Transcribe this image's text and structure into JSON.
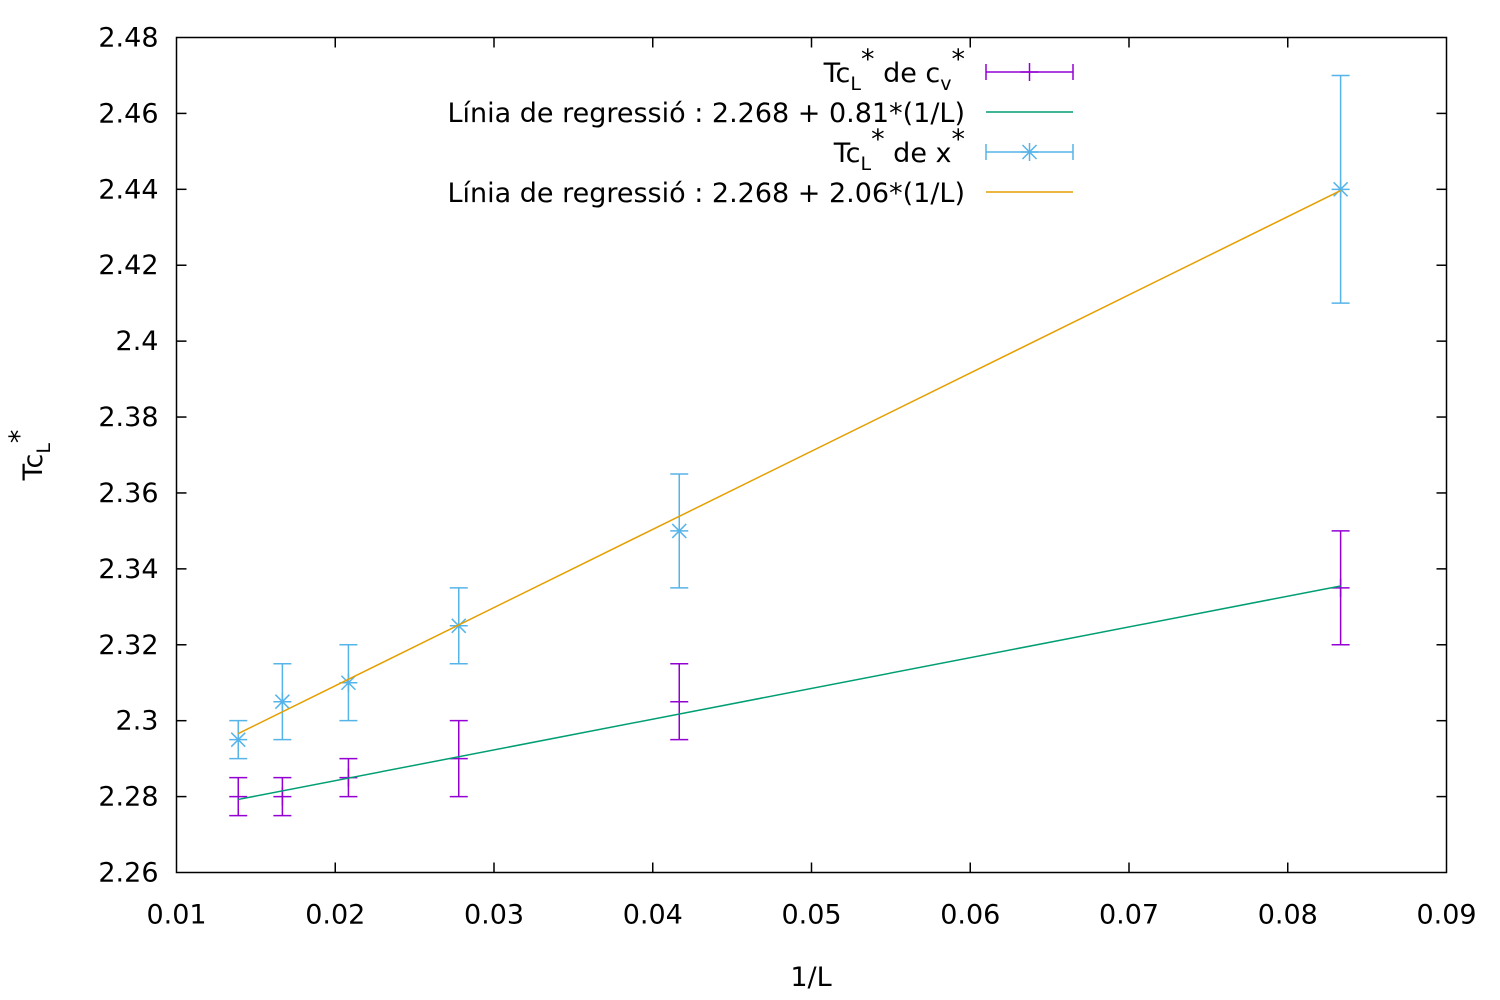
{
  "chart_data": {
    "type": "scatter",
    "title": "",
    "xlabel": "1/L",
    "ylabel": {
      "main": "Tc",
      "sub": "L",
      "sup": "*"
    },
    "xlim": [
      0.01,
      0.09
    ],
    "ylim": [
      2.26,
      2.48
    ],
    "xticks": [
      0.01,
      0.02,
      0.03,
      0.04,
      0.05,
      0.06,
      0.07,
      0.08,
      0.09
    ],
    "xtick_labels": [
      "0.01",
      "0.02",
      "0.03",
      "0.04",
      "0.05",
      "0.06",
      "0.07",
      "0.08",
      "0.09"
    ],
    "yticks": [
      2.26,
      2.28,
      2.3,
      2.32,
      2.34,
      2.36,
      2.38,
      2.4,
      2.42,
      2.44,
      2.46,
      2.48
    ],
    "ytick_labels": [
      "2.26",
      "2.28",
      "2.3",
      "2.32",
      "2.34",
      "2.36",
      "2.38",
      "2.4",
      "2.42",
      "2.44",
      "2.46",
      "2.48"
    ],
    "grid": false,
    "legend_position": "top-right",
    "series": [
      {
        "kind": "errorbars",
        "label": {
          "main": "Tc",
          "sub": "L",
          "sup": "*",
          "rest": " de c",
          "sub2": "v",
          "sup2": "*"
        },
        "color": "#9400d3",
        "marker": "plus",
        "x": [
          0.01389,
          0.01667,
          0.02083,
          0.02778,
          0.04167,
          0.08333
        ],
        "y": [
          2.28,
          2.28,
          2.285,
          2.29,
          2.305,
          2.335
        ],
        "err": [
          0.005,
          0.005,
          0.005,
          0.01,
          0.01,
          0.015
        ]
      },
      {
        "kind": "line",
        "label": {
          "text": "Línia de regressió : 2.268 + 0.81*(1/L)"
        },
        "color": "#009e73",
        "intercept": 2.268,
        "slope": 0.81,
        "x_range": [
          0.01389,
          0.08333
        ]
      },
      {
        "kind": "errorbars",
        "label": {
          "main": "Tc",
          "sub": "L",
          "sup": "*",
          "rest": " de x",
          "sup2": "*"
        },
        "color": "#56b4e9",
        "marker": "star",
        "x": [
          0.01389,
          0.01667,
          0.02083,
          0.02778,
          0.04167,
          0.08333
        ],
        "y": [
          2.295,
          2.305,
          2.31,
          2.325,
          2.35,
          2.44
        ],
        "err": [
          0.005,
          0.01,
          0.01,
          0.01,
          0.015,
          0.03
        ]
      },
      {
        "kind": "line",
        "label": {
          "text": "Línia de regressió : 2.268 + 2.06*(1/L)"
        },
        "color": "#e69f00",
        "intercept": 2.268,
        "slope": 2.06,
        "x_range": [
          0.01389,
          0.08333
        ]
      }
    ]
  }
}
